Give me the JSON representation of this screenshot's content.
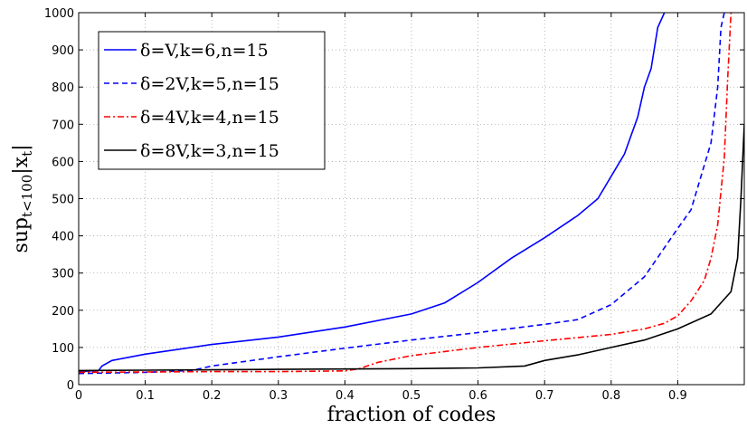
{
  "chart_data": {
    "type": "line",
    "title": "",
    "xlabel": "fraction of codes",
    "ylabel": "sup_{t<100}|x_t|",
    "xlim": [
      0,
      1
    ],
    "ylim": [
      0,
      1000
    ],
    "xticks": [
      0,
      0.1,
      0.2,
      0.3,
      0.4,
      0.5,
      0.6,
      0.7,
      0.8,
      0.9
    ],
    "xtick_labels": [
      "0",
      "0.1",
      "0.2",
      "0.3",
      "0.4",
      "0.5",
      "0.6",
      "0.7",
      "0.8",
      "0.9"
    ],
    "yticks": [
      0,
      100,
      200,
      300,
      400,
      500,
      600,
      700,
      800,
      900,
      1000
    ],
    "ytick_labels": [
      "0",
      "100",
      "200",
      "300",
      "400",
      "500",
      "600",
      "700",
      "800",
      "900",
      "1000"
    ],
    "grid": true,
    "legend_position": "top-left",
    "series": [
      {
        "name": "δ=V,k=6,n=15",
        "color": "#0000ff",
        "dash": "solid",
        "x": [
          0,
          0.03,
          0.035,
          0.05,
          0.1,
          0.2,
          0.3,
          0.4,
          0.5,
          0.55,
          0.6,
          0.65,
          0.7,
          0.75,
          0.78,
          0.8,
          0.82,
          0.84,
          0.85,
          0.86,
          0.87,
          0.88
        ],
        "y": [
          35,
          38,
          50,
          65,
          82,
          108,
          128,
          155,
          190,
          220,
          275,
          340,
          395,
          455,
          500,
          560,
          620,
          720,
          800,
          850,
          960,
          1000
        ]
      },
      {
        "name": "δ=2V,k=5,n=15",
        "color": "#0000ff",
        "dash": "dashed",
        "x": [
          0,
          0.1,
          0.17,
          0.2,
          0.3,
          0.4,
          0.5,
          0.6,
          0.7,
          0.75,
          0.8,
          0.85,
          0.9,
          0.92,
          0.94,
          0.95,
          0.96,
          0.965,
          0.97
        ],
        "y": [
          30,
          33,
          38,
          50,
          75,
          98,
          120,
          140,
          162,
          175,
          215,
          290,
          420,
          470,
          590,
          650,
          800,
          960,
          1000
        ]
      },
      {
        "name": "δ=4V,k=4,n=15",
        "color": "#ff0000",
        "dash": "dashdot",
        "x": [
          0,
          0.1,
          0.2,
          0.3,
          0.4,
          0.42,
          0.45,
          0.5,
          0.6,
          0.7,
          0.8,
          0.85,
          0.88,
          0.9,
          0.92,
          0.94,
          0.95,
          0.96,
          0.97,
          0.975,
          0.98
        ],
        "y": [
          33,
          34,
          35,
          35,
          37,
          42,
          60,
          78,
          100,
          118,
          135,
          150,
          165,
          185,
          225,
          280,
          340,
          430,
          610,
          820,
          1000
        ]
      },
      {
        "name": "δ=8V,k=3,n=15",
        "color": "#000000",
        "dash": "solid",
        "x": [
          0,
          0.1,
          0.2,
          0.3,
          0.4,
          0.5,
          0.6,
          0.67,
          0.7,
          0.75,
          0.8,
          0.85,
          0.9,
          0.95,
          0.97,
          0.98,
          0.99,
          0.995,
          1.0
        ],
        "y": [
          38,
          39,
          40,
          41,
          42,
          43,
          45,
          50,
          65,
          80,
          100,
          120,
          150,
          190,
          230,
          250,
          340,
          500,
          700
        ]
      }
    ]
  }
}
